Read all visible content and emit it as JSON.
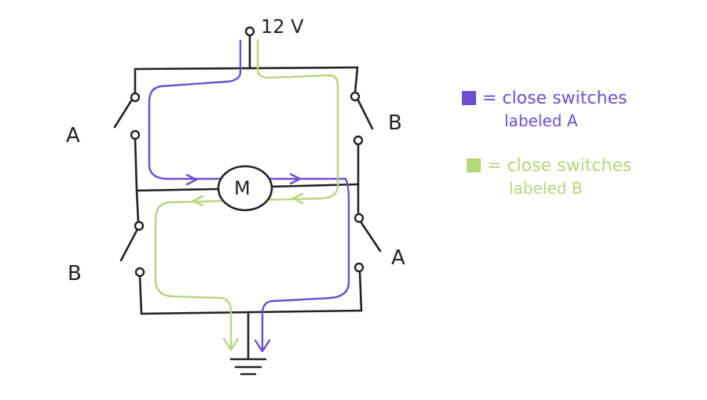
{
  "supply_label": "12 V",
  "motor_label": "M",
  "switches": {
    "top_left": "A",
    "top_right": "B",
    "bottom_left": "B",
    "bottom_right": "A"
  },
  "legend": [
    {
      "color": "#6a4fd1",
      "eq": "= close switches",
      "text": "labeled  A"
    },
    {
      "color": "#b5d67a",
      "eq": "= close switches",
      "text": "labeled  B"
    }
  ],
  "colors": {
    "wire": "#222222",
    "path_a": "#6a4fd1",
    "path_b": "#b5d67a"
  }
}
